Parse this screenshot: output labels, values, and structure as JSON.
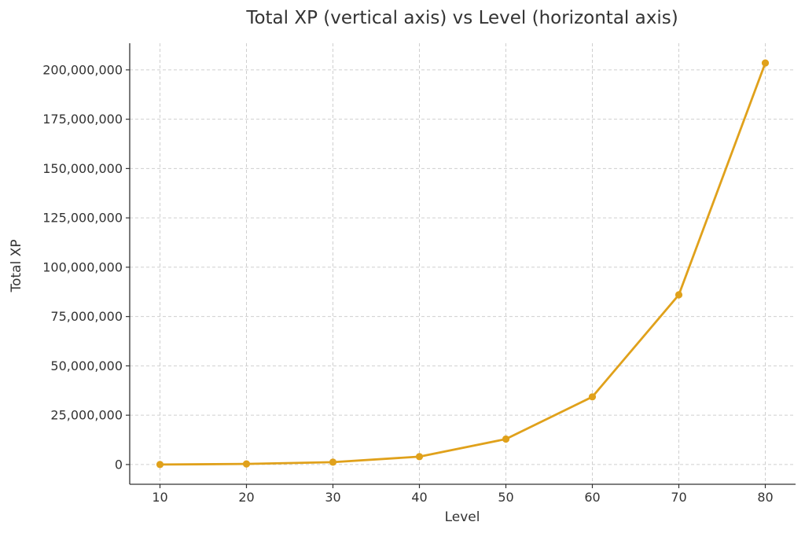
{
  "chart_data": {
    "type": "line",
    "title": "Total XP (vertical axis) vs Level (horizontal axis)",
    "xlabel": "Level",
    "ylabel": "Total XP",
    "x": [
      10,
      20,
      30,
      40,
      50,
      60,
      70,
      80
    ],
    "series": [
      {
        "values": [
          0,
          300000,
          1200000,
          4000000,
          12900000,
          34300000,
          86000000,
          203500000
        ],
        "color": "#e0a11b"
      }
    ],
    "xticks": [
      10,
      20,
      30,
      40,
      50,
      60,
      70,
      80
    ],
    "xtick_labels": [
      "10",
      "20",
      "30",
      "40",
      "50",
      "60",
      "70",
      "80"
    ],
    "yticks": [
      0,
      25000000,
      50000000,
      75000000,
      100000000,
      125000000,
      150000000,
      175000000,
      200000000
    ],
    "ytick_labels": [
      "0",
      "25,000,000",
      "50,000,000",
      "75,000,000",
      "100,000,000",
      "125,000,000",
      "150,000,000",
      "175,000,000",
      "200,000,000"
    ],
    "xlim": [
      6.5,
      83.5
    ],
    "ylim": [
      -10000000,
      213500000
    ],
    "grid": true,
    "marker": "circle"
  }
}
